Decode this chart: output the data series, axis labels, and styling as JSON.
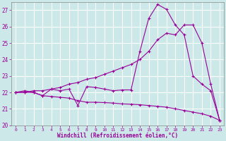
{
  "xlabel": "Windchill (Refroidissement éolien,°C)",
  "xlim": [
    -0.5,
    23.5
  ],
  "ylim": [
    20,
    27.5
  ],
  "yticks": [
    20,
    21,
    22,
    23,
    24,
    25,
    26,
    27
  ],
  "xticks": [
    0,
    1,
    2,
    3,
    4,
    5,
    6,
    7,
    8,
    9,
    10,
    11,
    12,
    13,
    14,
    15,
    16,
    17,
    18,
    19,
    20,
    21,
    22,
    23
  ],
  "background_color": "#cce8e8",
  "grid_color": "#b0d8d8",
  "line_color": "#990099",
  "line1_x": [
    0,
    1,
    2,
    3,
    4,
    5,
    6,
    7,
    8,
    9,
    10,
    11,
    12,
    13,
    14,
    15,
    16,
    17,
    18,
    19,
    20,
    21,
    22,
    23
  ],
  "line1_y": [
    22.0,
    22.1,
    22.0,
    21.8,
    22.2,
    22.1,
    22.2,
    21.2,
    22.35,
    22.3,
    22.2,
    22.1,
    22.15,
    22.15,
    24.5,
    26.5,
    27.35,
    27.05,
    26.1,
    25.5,
    23.0,
    22.5,
    22.1,
    20.3
  ],
  "line2_x": [
    0,
    1,
    2,
    3,
    4,
    5,
    6,
    7,
    8,
    9,
    10,
    11,
    12,
    13,
    14,
    15,
    16,
    17,
    18,
    19,
    20,
    21,
    22,
    23
  ],
  "line2_y": [
    22.0,
    22.0,
    22.1,
    22.1,
    22.2,
    22.3,
    22.5,
    22.6,
    22.8,
    22.9,
    23.1,
    23.3,
    23.5,
    23.7,
    24.0,
    24.5,
    25.2,
    25.6,
    25.5,
    26.1,
    26.1,
    25.0,
    22.5,
    20.3
  ],
  "line3_x": [
    0,
    1,
    2,
    3,
    4,
    5,
    6,
    7,
    8,
    9,
    10,
    11,
    12,
    13,
    14,
    15,
    16,
    17,
    18,
    19,
    20,
    21,
    22,
    23
  ],
  "line3_y": [
    22.0,
    22.0,
    22.0,
    21.8,
    21.75,
    21.7,
    21.65,
    21.5,
    21.4,
    21.4,
    21.38,
    21.35,
    21.3,
    21.28,
    21.25,
    21.2,
    21.15,
    21.1,
    21.0,
    20.9,
    20.8,
    20.7,
    20.55,
    20.3
  ]
}
